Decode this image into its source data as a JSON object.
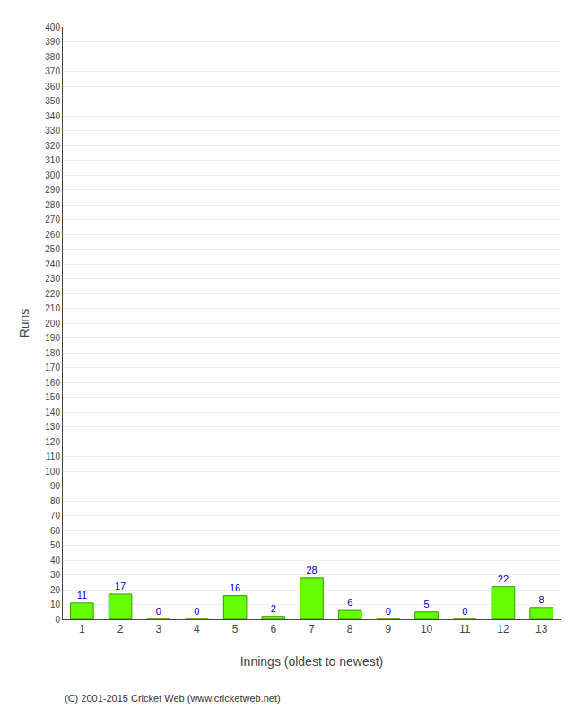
{
  "chart_data": {
    "type": "bar",
    "categories": [
      "1",
      "2",
      "3",
      "4",
      "5",
      "6",
      "7",
      "8",
      "9",
      "10",
      "11",
      "12",
      "13"
    ],
    "values": [
      11,
      17,
      0,
      0,
      16,
      2,
      28,
      6,
      0,
      5,
      0,
      22,
      8
    ],
    "color": "#66ff00",
    "xlabel": "Innings (oldest to newest)",
    "ylabel": "Runs",
    "ylim": [
      0,
      400
    ],
    "yticks": [
      0,
      10,
      20,
      30,
      40,
      50,
      60,
      70,
      80,
      90,
      100,
      110,
      120,
      130,
      140,
      150,
      160,
      170,
      180,
      190,
      200,
      210,
      220,
      230,
      240,
      250,
      260,
      270,
      280,
      290,
      300,
      310,
      320,
      330,
      340,
      350,
      360,
      370,
      380,
      390,
      400
    ],
    "grid": true,
    "data_labels": true,
    "annotations": [
      "(C) 2001-2015 Cricket Web (www.cricketweb.net)"
    ]
  }
}
